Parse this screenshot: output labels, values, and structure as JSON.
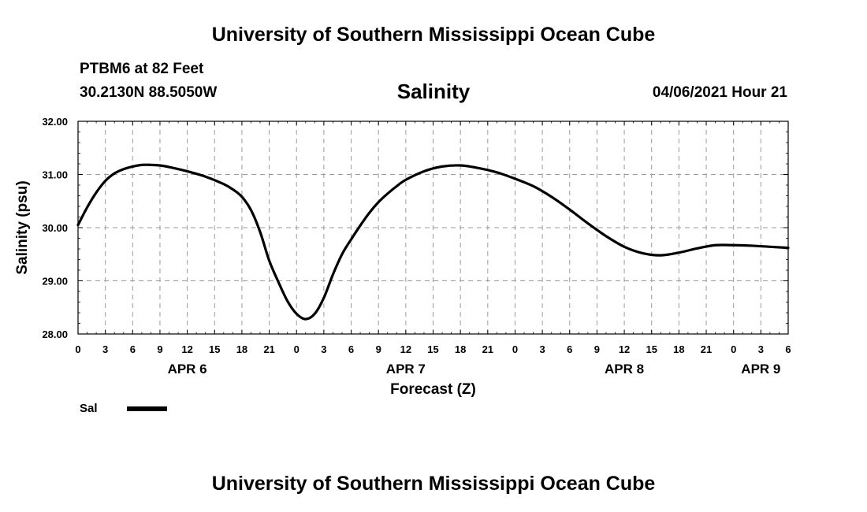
{
  "header": {
    "title": "University of Southern Mississippi Ocean Cube",
    "station": "PTBM6 at 82 Feet",
    "coordinates": "30.2130N  88.5050W",
    "chart_title": "Salinity",
    "datetime": "04/06/2021 Hour 21"
  },
  "footer": {
    "title": "University of Southern Mississippi Ocean Cube"
  },
  "legend": {
    "label": "Sal",
    "color": "#000000"
  },
  "chart_data": {
    "type": "line",
    "title": "Salinity",
    "xlabel": "Forecast (Z)",
    "ylabel": "Salinity (psu)",
    "ylim": [
      28.0,
      32.0
    ],
    "y_ticks": [
      "28.00",
      "29.00",
      "30.00",
      "31.00",
      "32.00"
    ],
    "xlim_hours": [
      0,
      78
    ],
    "x_tick_hours": [
      0,
      3,
      6,
      9,
      12,
      15,
      18,
      21,
      24,
      27,
      30,
      33,
      36,
      39,
      42,
      45,
      48,
      51,
      54,
      57,
      60,
      63,
      66,
      69,
      72,
      75,
      78
    ],
    "x_tick_labels": [
      "0",
      "3",
      "6",
      "9",
      "12",
      "15",
      "18",
      "21",
      "0",
      "3",
      "6",
      "9",
      "12",
      "15",
      "18",
      "21",
      "0",
      "3",
      "6",
      "9",
      "12",
      "15",
      "18",
      "21",
      "0",
      "3",
      "6"
    ],
    "date_labels": [
      {
        "label": "APR 6",
        "hour": 12
      },
      {
        "label": "APR 7",
        "hour": 36
      },
      {
        "label": "APR 8",
        "hour": 60
      },
      {
        "label": "APR 9",
        "hour": 75
      }
    ],
    "grid": true,
    "series": [
      {
        "name": "Sal",
        "color": "#000000",
        "x": [
          0,
          1,
          2,
          3,
          4,
          5,
          6,
          7,
          8,
          9,
          10,
          12,
          14,
          16,
          17,
          18,
          19,
          20,
          21,
          22,
          23,
          24,
          25,
          26,
          27,
          28,
          29,
          30,
          31,
          32,
          33,
          34,
          35,
          36,
          38,
          40,
          42,
          44,
          46,
          48,
          50,
          52,
          54,
          56,
          58,
          60,
          62,
          64,
          66,
          68,
          70,
          72,
          74,
          76,
          78
        ],
        "values": [
          30.05,
          30.38,
          30.66,
          30.88,
          31.02,
          31.1,
          31.15,
          31.18,
          31.18,
          31.17,
          31.14,
          31.06,
          30.96,
          30.82,
          30.72,
          30.58,
          30.33,
          29.92,
          29.38,
          28.98,
          28.62,
          28.38,
          28.28,
          28.38,
          28.68,
          29.12,
          29.5,
          29.78,
          30.04,
          30.28,
          30.48,
          30.64,
          30.78,
          30.9,
          31.06,
          31.15,
          31.17,
          31.12,
          31.04,
          30.92,
          30.78,
          30.58,
          30.34,
          30.08,
          29.84,
          29.64,
          29.52,
          29.48,
          29.53,
          29.61,
          29.67,
          29.67,
          29.66,
          29.64,
          29.62
        ]
      }
    ]
  }
}
